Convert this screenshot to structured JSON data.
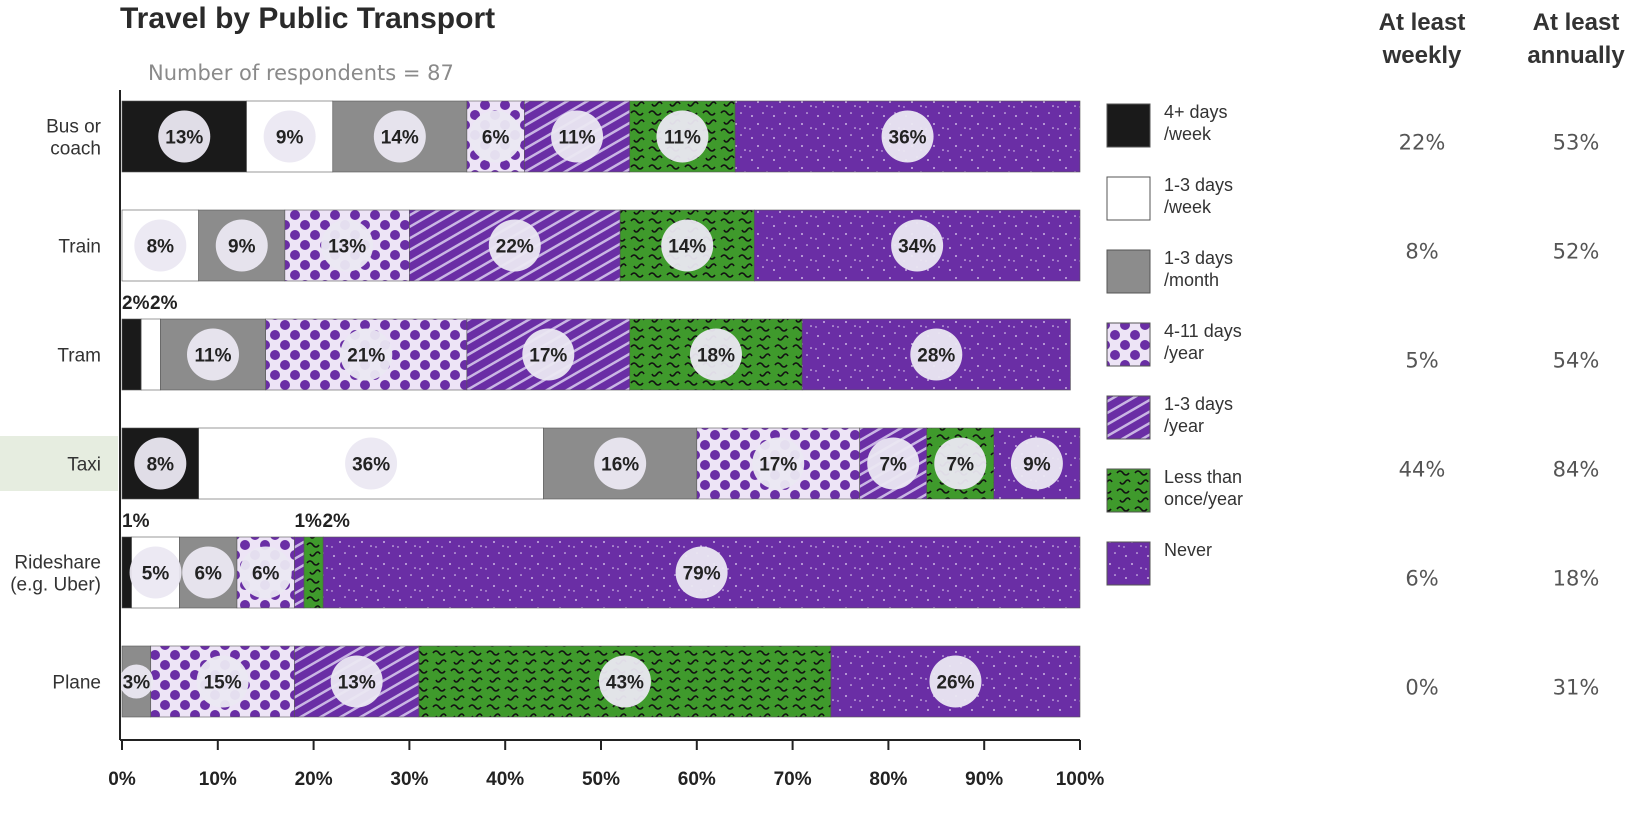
{
  "colors": {
    "4plus_week": "#1a1a1a",
    "1_3_week": "#ffffff",
    "1_3_month": "#8c8c8c",
    "4_11_year": "#6a2ea5",
    "1_3_year": "#6a2ea5",
    "less_than_once": "#3f9a2c",
    "never": "#6a2ea5",
    "highlight": "#e6ede0"
  },
  "chart_data": {
    "type": "bar",
    "orientation": "horizontal",
    "stacked": true,
    "title": "Travel by Public Transport",
    "subtitle": "Number of respondents = 87",
    "categories": [
      "Bus or coach",
      "Train",
      "Tram",
      "Taxi",
      "Rideshare (e.g. Uber)",
      "Plane"
    ],
    "category_lines": [
      [
        "Bus or",
        "coach"
      ],
      [
        "Train"
      ],
      [
        "Tram"
      ],
      [
        "Taxi"
      ],
      [
        "Rideshare",
        "(e.g. Uber)"
      ],
      [
        "Plane"
      ]
    ],
    "highlighted_category": "Taxi",
    "series": [
      {
        "name": "4+ days /week",
        "label_lines": [
          "4+ days",
          "/week"
        ],
        "key": "4plus_week",
        "pattern": "solid-black",
        "values": [
          13,
          0,
          2,
          8,
          1,
          0
        ]
      },
      {
        "name": "1-3 days /week",
        "label_lines": [
          "1-3 days",
          "/week"
        ],
        "key": "1_3_week",
        "pattern": "solid-white",
        "values": [
          9,
          8,
          2,
          36,
          5,
          0
        ]
      },
      {
        "name": "1-3 days /month",
        "label_lines": [
          "1-3 days",
          "/month"
        ],
        "key": "1_3_month",
        "pattern": "solid-grey",
        "values": [
          14,
          9,
          11,
          16,
          6,
          3
        ]
      },
      {
        "name": "4-11 days /year",
        "label_lines": [
          "4-11 days",
          "/year"
        ],
        "key": "4_11_year",
        "pattern": "dots",
        "values": [
          6,
          13,
          21,
          17,
          6,
          15
        ]
      },
      {
        "name": "1-3 days /year",
        "label_lines": [
          "1-3 days",
          "/year"
        ],
        "key": "1_3_year",
        "pattern": "diagonal",
        "values": [
          11,
          22,
          17,
          7,
          1,
          13
        ]
      },
      {
        "name": "Less than once/year",
        "label_lines": [
          "Less than",
          "once/year"
        ],
        "key": "less_than_once",
        "pattern": "squiggle",
        "values": [
          11,
          14,
          18,
          7,
          2,
          43
        ]
      },
      {
        "name": "Never",
        "label_lines": [
          "Never"
        ],
        "key": "never",
        "pattern": "speckle",
        "values": [
          36,
          34,
          28,
          9,
          79,
          26
        ]
      }
    ],
    "data_labels": [
      [
        "13%",
        "9%",
        "14%",
        "6%",
        "11%",
        "11%",
        "36%"
      ],
      [
        "",
        "8%",
        "9%",
        "13%",
        "22%",
        "14%",
        "34%"
      ],
      [
        "2%",
        "2%",
        "11%",
        "21%",
        "17%",
        "18%",
        "28%"
      ],
      [
        "8%",
        "36%",
        "16%",
        "17%",
        "7%",
        "7%",
        "9%"
      ],
      [
        "1%",
        "5%",
        "6%",
        "6%",
        "1%",
        "2%",
        "79%"
      ],
      [
        "",
        "",
        "3%",
        "15%",
        "13%",
        "43%",
        "26%"
      ]
    ],
    "xlim": [
      0,
      100
    ],
    "xticks": [
      "0%",
      "10%",
      "20%",
      "30%",
      "40%",
      "50%",
      "60%",
      "70%",
      "80%",
      "90%",
      "100%"
    ],
    "legend_position": "right",
    "grid": false
  },
  "summary_table": {
    "columns": [
      {
        "lines": [
          "At least",
          "weekly"
        ],
        "values": [
          "22%",
          "8%",
          "5%",
          "44%",
          "6%",
          "0%"
        ]
      },
      {
        "lines": [
          "At least",
          "annually"
        ],
        "values": [
          "53%",
          "52%",
          "54%",
          "84%",
          "18%",
          "31%"
        ]
      }
    ]
  }
}
